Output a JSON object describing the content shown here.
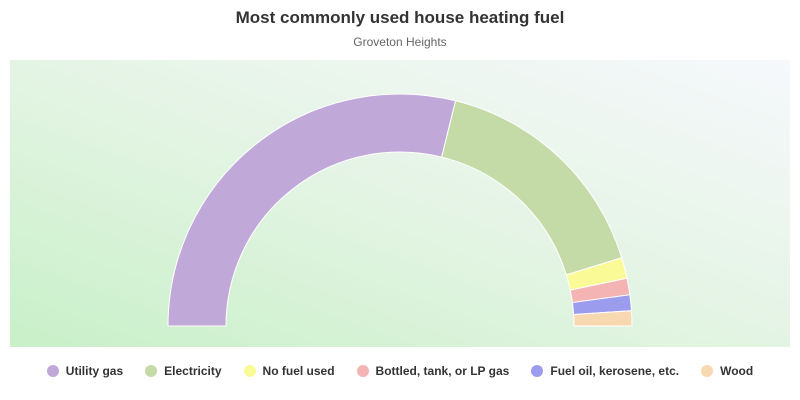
{
  "chart_data": {
    "type": "half-donut",
    "title": "Most commonly used house heating fuel",
    "subtitle": "Groveton Heights",
    "categories": [
      "Utility gas",
      "Electricity",
      "No fuel used",
      "Bottled, tank, or LP gas",
      "Fuel oil, kerosene, etc.",
      "Wood"
    ],
    "values": [
      57.7,
      32.8,
      2.9,
      2.3,
      2.2,
      2.1
    ],
    "colors": [
      "#c0a8d8",
      "#c4dba8",
      "#fafa96",
      "#f5b4b4",
      "#9c9cee",
      "#f8d8b0"
    ]
  }
}
